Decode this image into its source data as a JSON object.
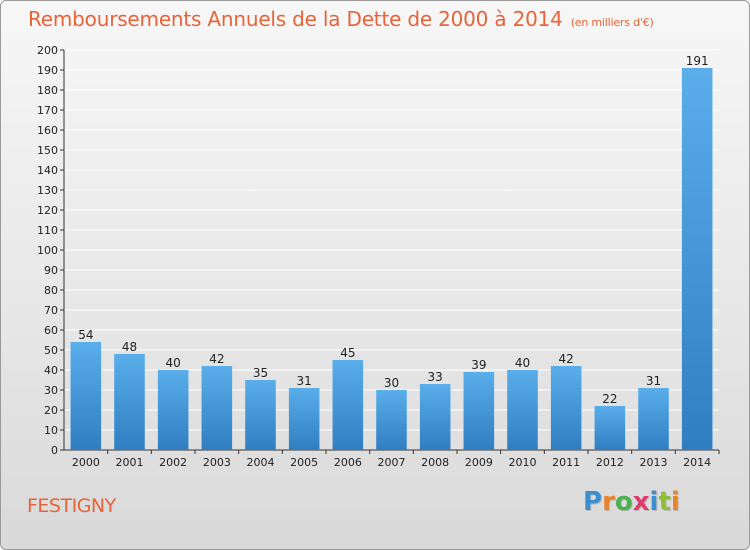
{
  "title": "Remboursements Annuels de la Dette de 2000 à 2014",
  "unit": "(en milliers d'€)",
  "commune": "FESTIGNY",
  "logo": {
    "letters": [
      "P",
      "r",
      "o",
      "x",
      "i",
      "t",
      "i"
    ],
    "colors": [
      "#3b8fd1",
      "#e8842a",
      "#4caf50",
      "#e03a6e",
      "#3b8fd1",
      "#8fbf3a",
      "#e8842a"
    ]
  },
  "colors": {
    "bar_top": "#5aaeea",
    "bar_bottom": "#2f7ec2",
    "title": "#e8633a",
    "grid": "#ffffff"
  },
  "chart_data": {
    "type": "bar",
    "title": "Remboursements Annuels de la Dette de 2000 à 2014",
    "xlabel": "",
    "ylabel": "",
    "categories": [
      "2000",
      "2001",
      "2002",
      "2003",
      "2004",
      "2005",
      "2006",
      "2007",
      "2008",
      "2009",
      "2010",
      "2011",
      "2012",
      "2013",
      "2014"
    ],
    "values": [
      54,
      48,
      40,
      42,
      35,
      31,
      45,
      30,
      33,
      39,
      40,
      42,
      22,
      31,
      191
    ],
    "ylim": [
      0,
      200
    ],
    "ytick_step": 10,
    "grid": true,
    "data_labels": true
  }
}
